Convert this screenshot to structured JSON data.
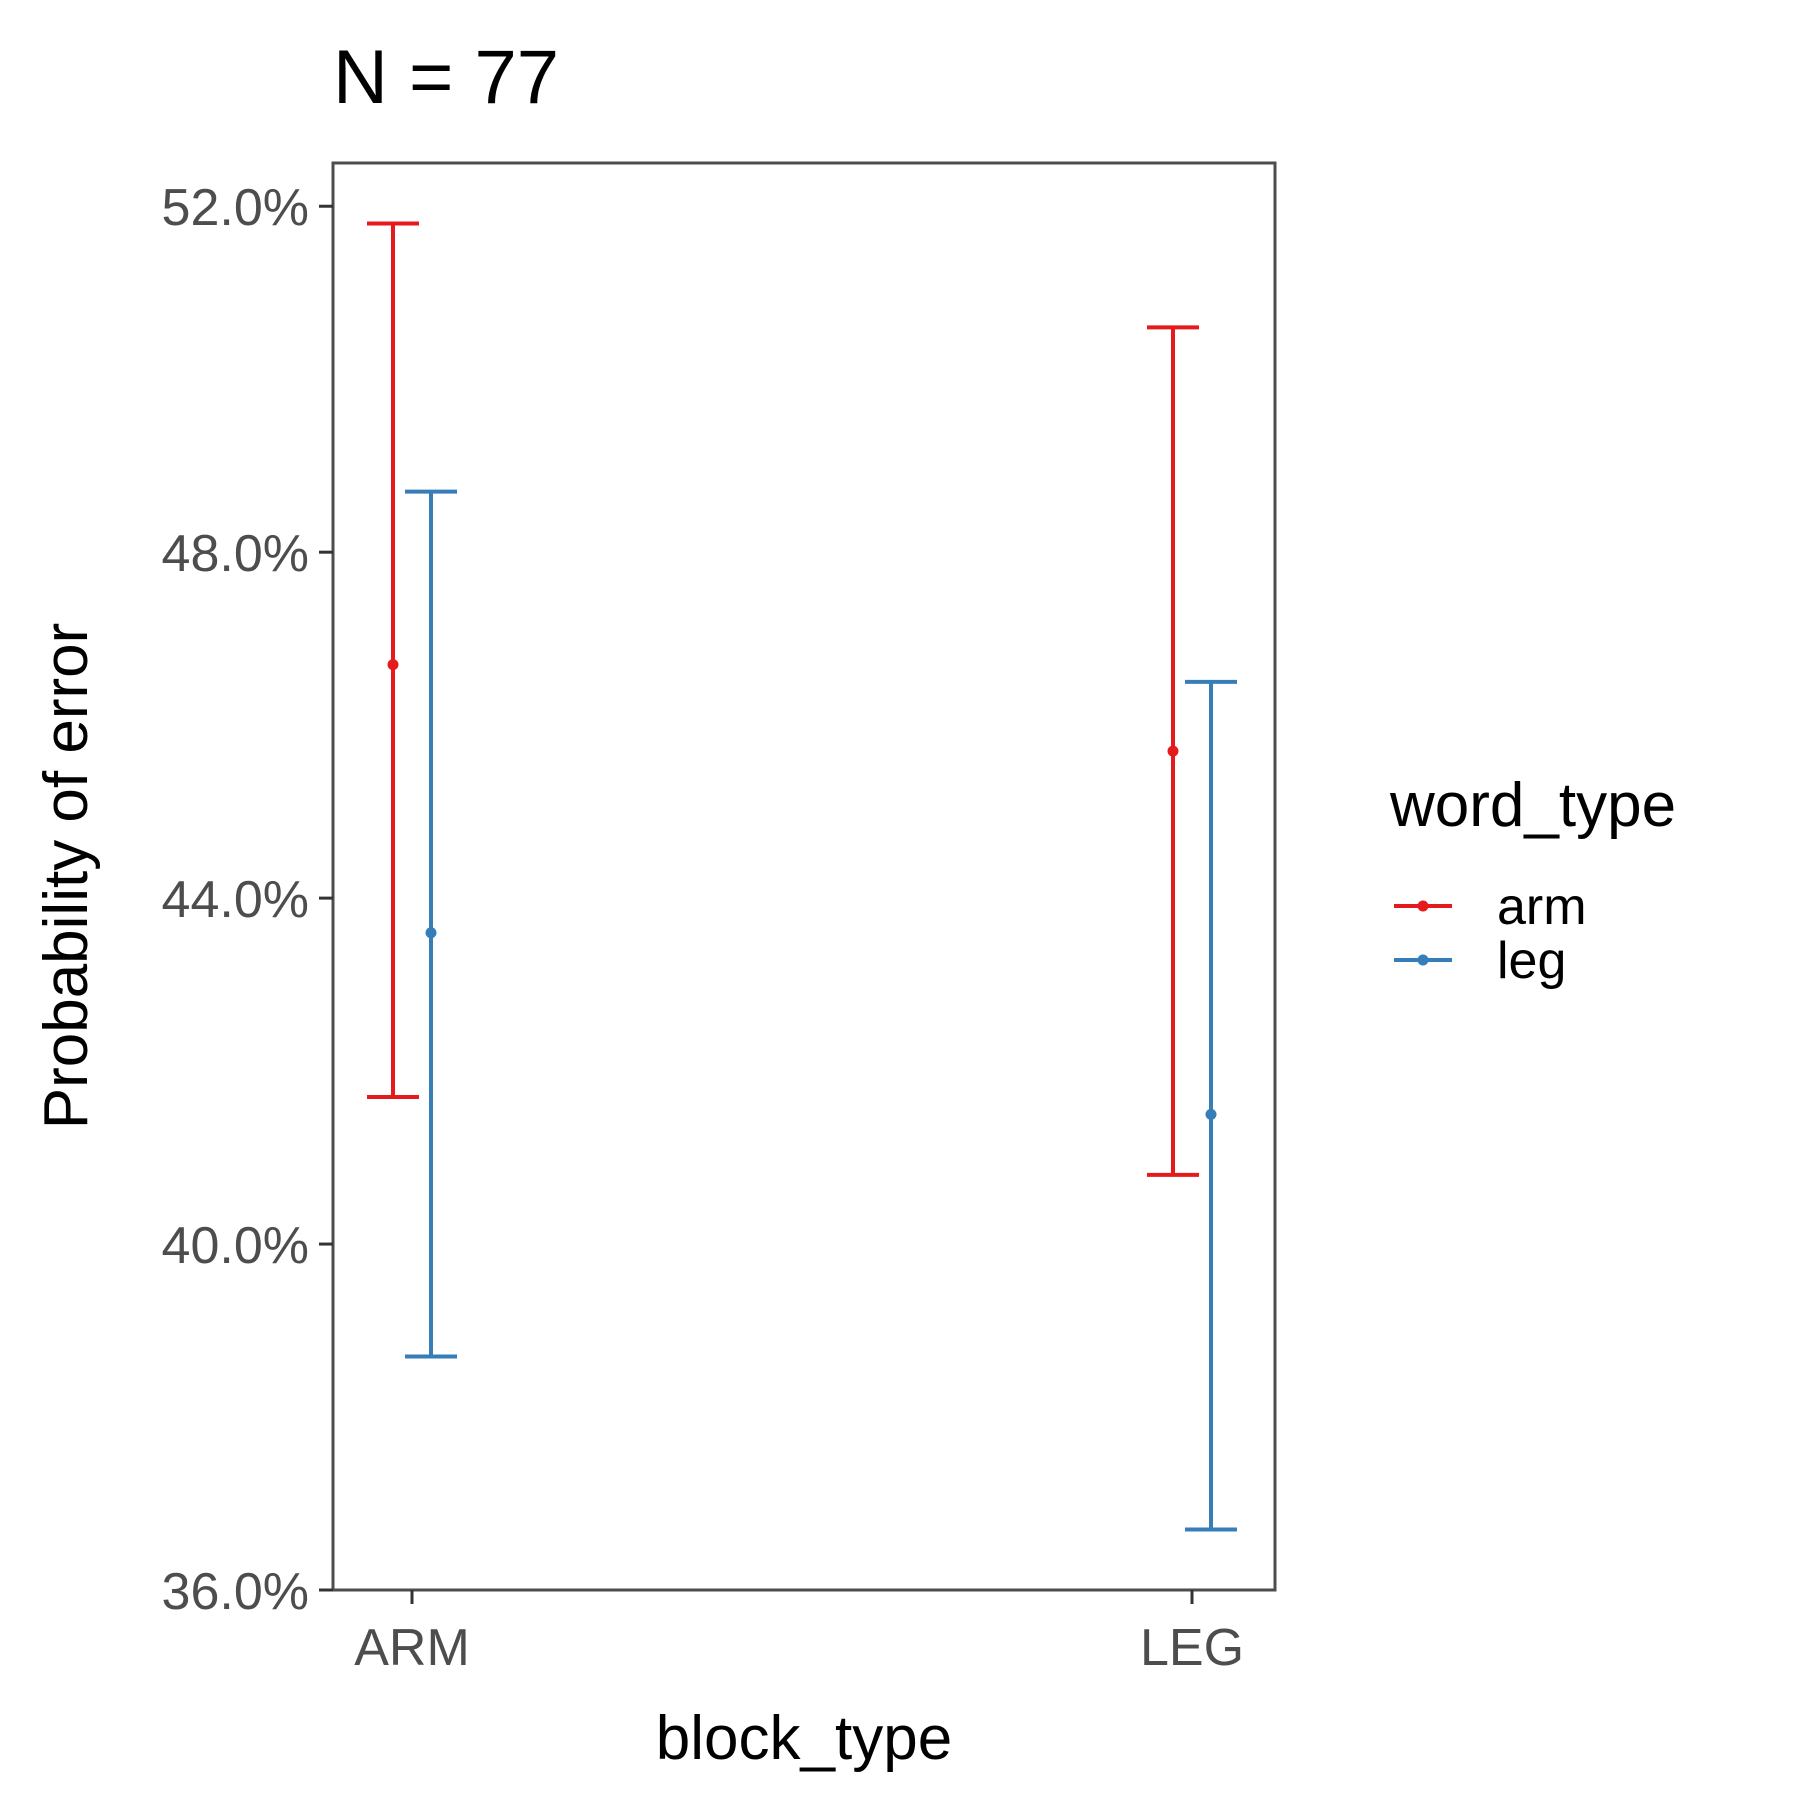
{
  "chart_data": {
    "type": "errorbar",
    "title": "N = 77",
    "xlabel": "block_type",
    "ylabel": "Probability of error",
    "categories": [
      "ARM",
      "LEG"
    ],
    "ylim": [
      36.0,
      52.5
    ],
    "yticks": [
      36.0,
      40.0,
      44.0,
      48.0,
      52.0
    ],
    "ytick_labels": [
      "36.0%",
      "40.0%",
      "44.0%",
      "48.0%",
      "52.0%"
    ],
    "grid": false,
    "legend": {
      "title": "word_type",
      "placement": "right"
    },
    "series": [
      {
        "name": "arm",
        "color": "#e41a1c",
        "values": [
          46.7,
          45.7
        ],
        "lower": [
          41.7,
          40.8
        ],
        "upper": [
          51.8,
          50.6
        ]
      },
      {
        "name": "leg",
        "color": "#377eb8",
        "values": [
          43.6,
          41.5
        ],
        "lower": [
          38.7,
          36.7
        ],
        "upper": [
          48.7,
          46.5
        ]
      }
    ]
  }
}
